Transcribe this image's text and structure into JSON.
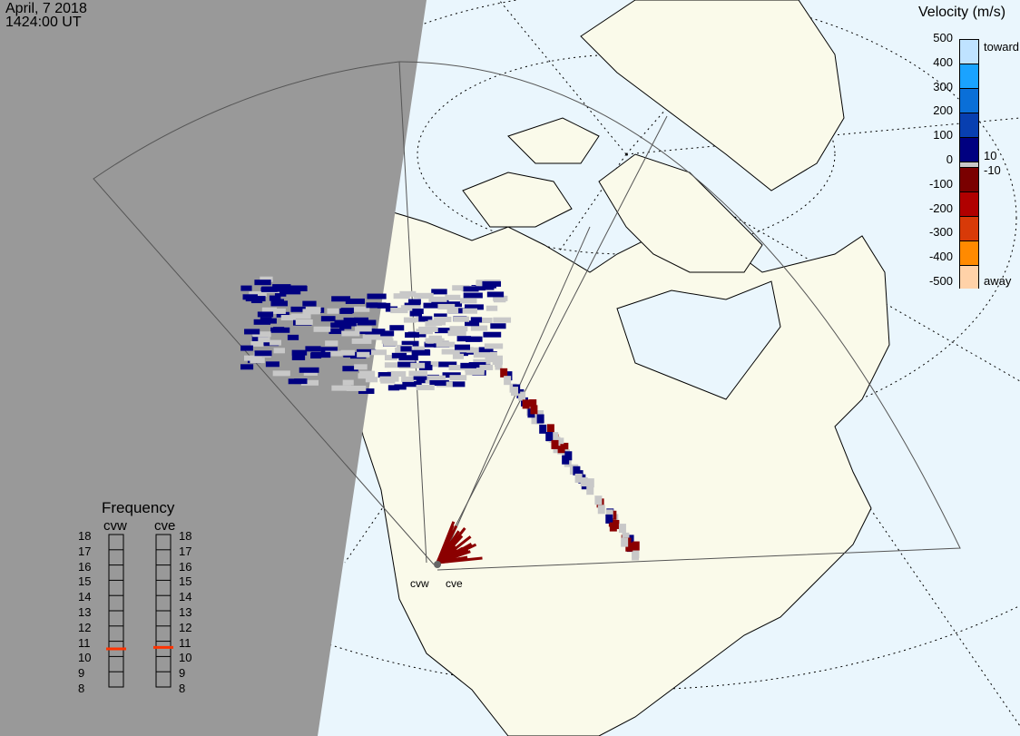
{
  "header": {
    "date": "April, 7 2018",
    "time": "1424:00 UT"
  },
  "velocity_legend": {
    "title": "Velocity (m/s)",
    "ticks": [
      "500",
      "400",
      "300",
      "200",
      "100",
      "0",
      "-100",
      "-200",
      "-300",
      "-400",
      "-500"
    ],
    "inner_ticks": [
      "10",
      "-10"
    ],
    "toward_label": "toward",
    "away_label": "away",
    "colors": [
      "#bfe3ff",
      "#1aa3ff",
      "#0a6fd8",
      "#083fb0",
      "#000080",
      "#c8c8c8",
      "#7a0000",
      "#b00000",
      "#d83a08",
      "#ff8a00",
      "#ffd2a8"
    ]
  },
  "frequency_panel": {
    "title": "Frequency",
    "ticks": [
      "18",
      "17",
      "16",
      "15",
      "14",
      "13",
      "12",
      "11",
      "10",
      "9",
      "8"
    ],
    "radars": [
      {
        "name": "cvw",
        "frequency_mhz": 10.5
      },
      {
        "name": "cve",
        "frequency_mhz": 10.6
      }
    ],
    "marker_color": "#ff3300"
  },
  "map": {
    "radar_labels": [
      "cvw",
      "cve"
    ],
    "colors": {
      "ocean": "#eaf6fd",
      "land": "#fafaea",
      "night": "#999999",
      "ground_scatter": "#c8c8c8",
      "toward": "#000080",
      "away": "#8b0000"
    }
  }
}
